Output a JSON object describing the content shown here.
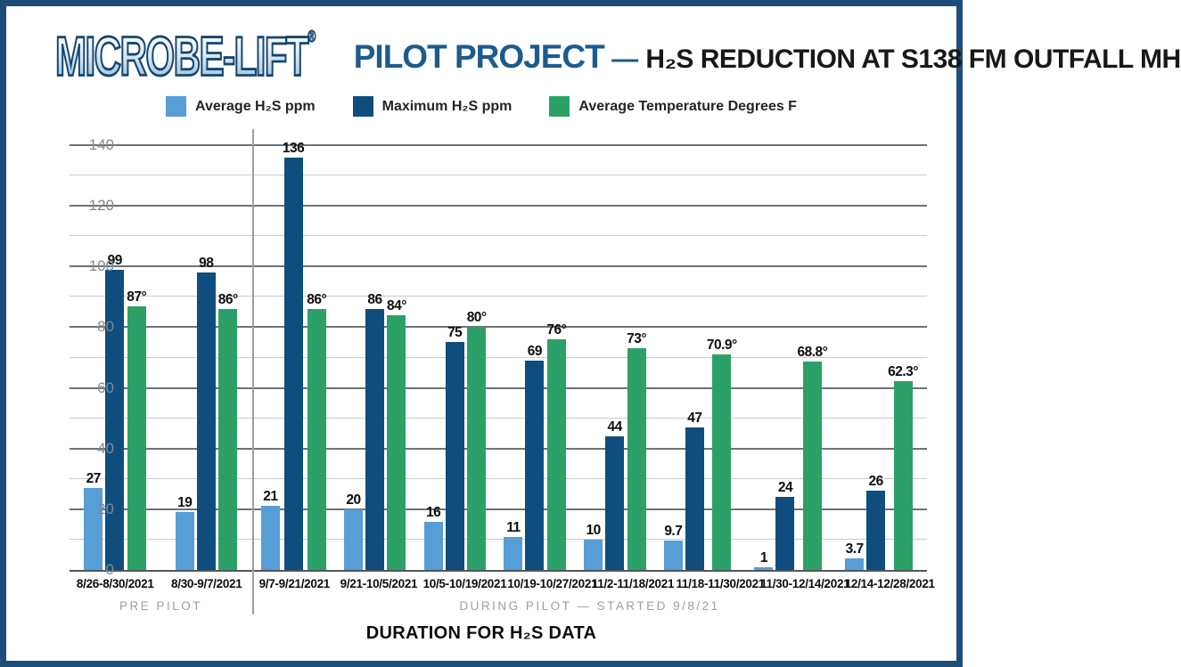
{
  "header": {
    "logo": "MICROBE-LIFT",
    "logo_reg": "®",
    "title_blue": "PILOT PROJECT",
    "title_dash": " — ",
    "title_black": "H₂S REDUCTION AT S138 FM OUTFALL MH"
  },
  "legend": [
    {
      "label": "Average H₂S ppm",
      "color": "#579dd6"
    },
    {
      "label": "Maximum H₂S ppm",
      "color": "#0e4d7d"
    },
    {
      "label": "Average Temperature Degrees F",
      "color": "#2ba168"
    }
  ],
  "colors": {
    "frame_border": "#1d4e79",
    "title_blue": "#1d5b8c",
    "avg_h2s": "#579dd6",
    "max_h2s": "#0e4d7d",
    "temperature": "#2ba168",
    "grid_major": "#6e7277",
    "grid_minor": "#c9ccd0",
    "muted_gray": "#9aa0a7"
  },
  "chart_data": {
    "type": "bar",
    "title": "PILOT PROJECT — H₂S REDUCTION AT S138 FM OUTFALL MH",
    "xlabel": "DURATION FOR H₂S DATA",
    "ylabel": "",
    "ylim": [
      0,
      140
    ],
    "yticks": [
      0,
      20,
      40,
      60,
      80,
      100,
      120,
      140
    ],
    "grid": "major 20 / minor 10, horizontal only",
    "legend_position": "top center",
    "categories": [
      "8/26-8/30/2021",
      "8/30-9/7/2021",
      "9/7-9/21/2021",
      "9/21-10/5/2021",
      "10/5-10/19/2021",
      "10/19-10/27/2021",
      "11/2-11/18/2021",
      "11/18-11/30/2021",
      "11/30-12/14/2021",
      "12/14-12/28/2021"
    ],
    "series": [
      {
        "name": "Average H₂S ppm",
        "color": "#579dd6",
        "values": [
          27,
          19,
          21,
          20,
          16,
          11,
          10,
          9.7,
          1,
          3.7
        ],
        "labels": [
          "27",
          "19",
          "21",
          "20",
          "16",
          "11",
          "10",
          "9.7",
          "1",
          "3.7"
        ]
      },
      {
        "name": "Maximum H₂S ppm",
        "color": "#0e4d7d",
        "values": [
          99,
          98,
          136,
          86,
          75,
          69,
          44,
          47,
          24,
          26
        ],
        "labels": [
          "99",
          "98",
          "136",
          "86",
          "75",
          "69",
          "44",
          "47",
          "24",
          "26"
        ]
      },
      {
        "name": "Average Temperature Degrees F",
        "color": "#2ba168",
        "values": [
          87,
          86,
          86,
          84,
          80,
          76,
          73,
          70.9,
          68.8,
          62.3
        ],
        "labels": [
          "87°",
          "86°",
          "86°",
          "84°",
          "80°",
          "76°",
          "73°",
          "70.9°",
          "68.8°",
          "62.3°"
        ]
      }
    ],
    "sections": [
      {
        "label": "PRE PILOT",
        "groups": [
          0,
          1
        ]
      },
      {
        "label": "DURING PILOT — STARTED 9/8/21",
        "groups": [
          2,
          3,
          4,
          5,
          6,
          7,
          8,
          9
        ]
      }
    ]
  }
}
